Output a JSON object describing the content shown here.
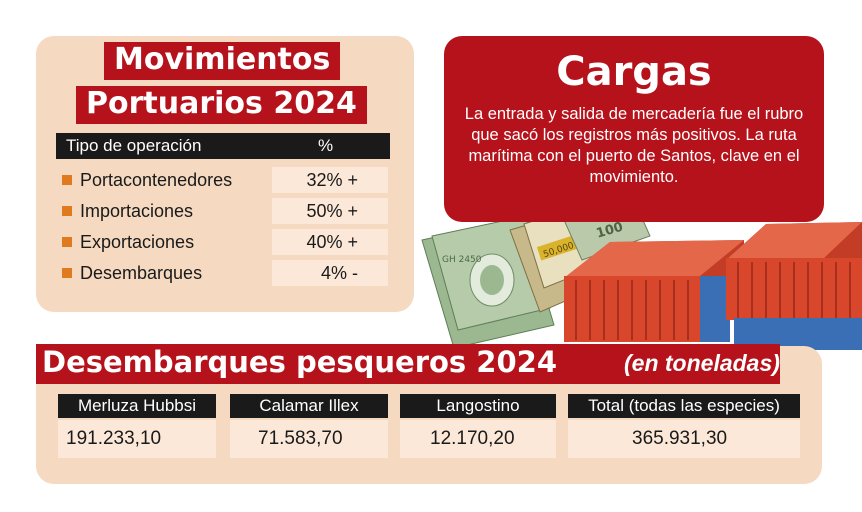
{
  "ops_panel": {
    "title_line1": "Movimientos",
    "title_line2": "Portuarios 2024",
    "header_type": "Tipo de operación",
    "header_pct": "%",
    "rows": [
      {
        "label": "Portacontenedores",
        "value": "32% +"
      },
      {
        "label": "Importaciones",
        "value": "50% +"
      },
      {
        "label": "Exportaciones",
        "value": "40% +"
      },
      {
        "label": "Desembarques",
        "value": "4% -"
      }
    ]
  },
  "cargas": {
    "title": "Cargas",
    "text": "La entrada y salida de mercadería fue el rubro que sacó los registros más positivos. La ruta marítima con el puerto de Santos, clave en el movimiento."
  },
  "illustration": {
    "banknote_text_1": "50,000",
    "banknote_text_2": "100"
  },
  "fishing": {
    "title": "Desembarques pesqueros 2024",
    "subtitle": "(en toneladas)",
    "columns": [
      {
        "header": "Merluza Hubbsi",
        "value": "191.233,10"
      },
      {
        "header": "Calamar Illex",
        "value": "71.583,70"
      },
      {
        "header": "Langostino",
        "value": "12.170,20"
      },
      {
        "header": "Total (todas las especies)",
        "value": "365.931,30"
      }
    ]
  },
  "colors": {
    "brand_red": "#b5121b",
    "panel_peach": "#f5d9c0",
    "cell_light": "#fbe8d8",
    "bullet_orange": "#e07a1f",
    "container_red": "#d8462c",
    "container_blue": "#3a6fb5",
    "money_green": "#8fae85"
  }
}
